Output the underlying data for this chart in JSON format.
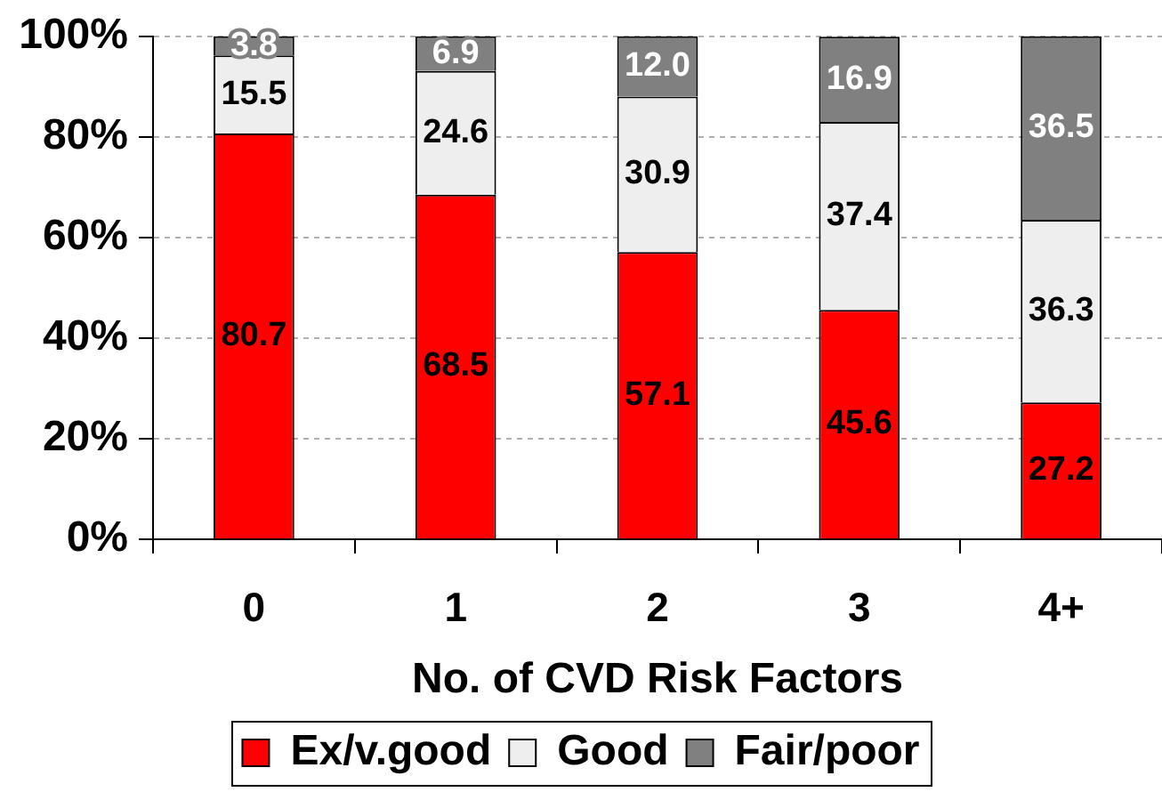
{
  "chart_data": {
    "type": "bar",
    "stacked": true,
    "xlabel": "No. of CVD Risk Factors",
    "categories": [
      "0",
      "1",
      "2",
      "3",
      "4+"
    ],
    "series": [
      {
        "name": "Ex/v.good",
        "color": "#ff0000",
        "values": [
          80.7,
          68.5,
          57.1,
          45.6,
          27.2
        ],
        "value_labels": [
          "80.7",
          "68.5",
          "57.1",
          "45.6",
          "27.2"
        ]
      },
      {
        "name": "Good",
        "color": "#eeeeee",
        "values": [
          15.5,
          24.6,
          30.9,
          37.4,
          36.3
        ],
        "value_labels": [
          "15.5",
          "24.6",
          "30.9",
          "37.4",
          "36.3"
        ]
      },
      {
        "name": "Fair/poor",
        "color": "#808080",
        "values": [
          3.8,
          6.9,
          12.0,
          16.9,
          36.5
        ],
        "value_labels": [
          "3.8",
          "6.9",
          "12.0",
          "16.9",
          "36.5"
        ]
      }
    ],
    "ylim": [
      0,
      100
    ],
    "yticks": [
      {
        "value": 0,
        "label": "0%"
      },
      {
        "value": 20,
        "label": "20%"
      },
      {
        "value": 40,
        "label": "40%"
      },
      {
        "value": 60,
        "label": "60%"
      },
      {
        "value": 80,
        "label": "80%"
      },
      {
        "value": 100,
        "label": "100%"
      }
    ],
    "grid": "y",
    "legend": "bottom"
  }
}
